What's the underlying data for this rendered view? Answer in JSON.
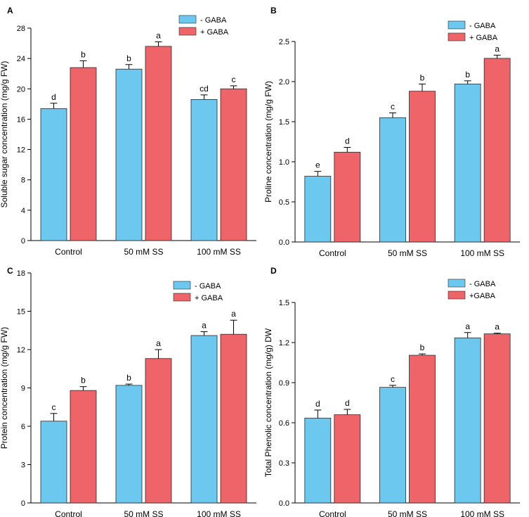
{
  "colors": {
    "minus": "#6DC8F0",
    "plus": "#EE6468",
    "edge": "#2a2a2a"
  },
  "chart_data": [
    {
      "type": "bar",
      "panel": "A",
      "ylabel": "Soluble sugar concentration (mg/g FW)",
      "categories": [
        "Control",
        "50 mM SS",
        "100 mM SS"
      ],
      "ylim": [
        0,
        28
      ],
      "yticks": [
        "0",
        "4",
        "8",
        "12",
        "16",
        "20",
        "24",
        "28"
      ],
      "tick_values": [
        0,
        4,
        8,
        12,
        16,
        20,
        24,
        28
      ],
      "legend": [
        "- GABA",
        "+ GABA"
      ],
      "series": [
        {
          "name": "- GABA",
          "values": [
            17.4,
            22.6,
            18.6
          ],
          "errors": [
            0.7,
            0.6,
            0.6
          ],
          "letters": [
            "d",
            "b",
            "cd"
          ]
        },
        {
          "name": "+ GABA",
          "values": [
            22.8,
            25.6,
            20.0
          ],
          "errors": [
            0.9,
            0.6,
            0.4
          ],
          "letters": [
            "b",
            "a",
            "c"
          ]
        }
      ]
    },
    {
      "type": "bar",
      "panel": "B",
      "ylabel": "Proline concentration (mg/g FW)",
      "categories": [
        "Control",
        "50 mM SS",
        "100 mM SS"
      ],
      "ylim": [
        0,
        2.5
      ],
      "yticks": [
        "0.0",
        "0.5",
        "1.0",
        "1.5",
        "2.0",
        "2.5"
      ],
      "tick_values": [
        0,
        0.5,
        1.0,
        1.5,
        2.0,
        2.5
      ],
      "legend": [
        "- GABA",
        "+ GABA"
      ],
      "series": [
        {
          "name": "- GABA",
          "values": [
            0.82,
            1.55,
            1.97
          ],
          "errors": [
            0.06,
            0.06,
            0.04
          ],
          "letters": [
            "e",
            "c",
            "b"
          ]
        },
        {
          "name": "+ GABA",
          "values": [
            1.12,
            1.88,
            2.29
          ],
          "errors": [
            0.06,
            0.09,
            0.04
          ],
          "letters": [
            "d",
            "b",
            "a"
          ]
        }
      ]
    },
    {
      "type": "bar",
      "panel": "C",
      "ylabel": "Protein concentration (mg/g FW)",
      "categories": [
        "Control",
        "50 mM SS",
        "100 mM SS"
      ],
      "ylim": [
        0,
        18
      ],
      "yticks": [
        "0",
        "3",
        "6",
        "9",
        "12",
        "15",
        "18"
      ],
      "tick_values": [
        0,
        3,
        6,
        9,
        12,
        15,
        18
      ],
      "legend": [
        "- GABA",
        "+ GABA"
      ],
      "series": [
        {
          "name": "- GABA",
          "values": [
            6.4,
            9.2,
            13.1
          ],
          "errors": [
            0.6,
            0.1,
            0.3
          ],
          "letters": [
            "c",
            "b",
            "a"
          ]
        },
        {
          "name": "+ GABA",
          "values": [
            8.8,
            11.3,
            13.2
          ],
          "errors": [
            0.3,
            0.7,
            1.1
          ],
          "letters": [
            "b",
            "a",
            "a"
          ]
        }
      ]
    },
    {
      "type": "bar",
      "panel": "D",
      "ylabel": "Total Phenolic concentration (mg/g) DW",
      "categories": [
        "Control",
        "50 mM SS",
        "100 mM SS"
      ],
      "ylim": [
        0,
        1.5
      ],
      "yticks": [
        "0.0",
        "0.3",
        "0.6",
        "0.9",
        "1.2",
        "1.5"
      ],
      "tick_values": [
        0,
        0.3,
        0.6,
        0.9,
        1.2,
        1.5
      ],
      "legend": [
        "- GABA",
        "+GABA"
      ],
      "series": [
        {
          "name": "- GABA",
          "values": [
            0.635,
            0.865,
            1.235
          ],
          "errors": [
            0.06,
            0.015,
            0.04
          ],
          "letters": [
            "d",
            "c",
            "a"
          ]
        },
        {
          "name": "+GABA",
          "values": [
            0.66,
            1.105,
            1.265
          ],
          "errors": [
            0.04,
            0.01,
            0.005
          ],
          "letters": [
            "d",
            "b",
            "a"
          ]
        }
      ]
    }
  ]
}
